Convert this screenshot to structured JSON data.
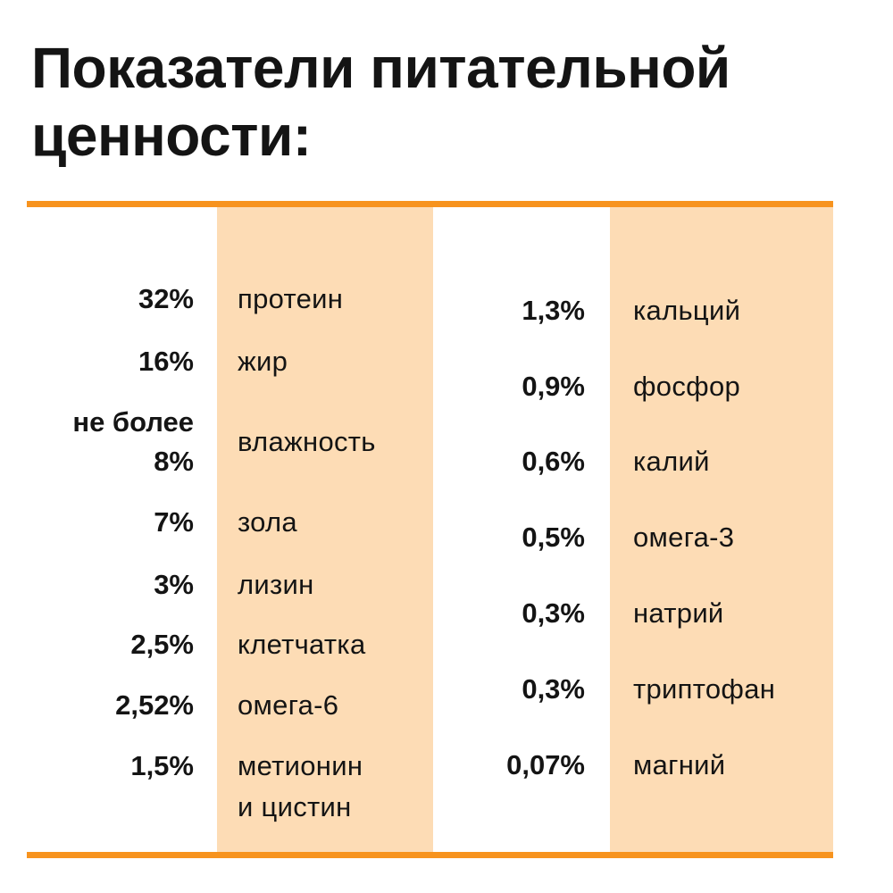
{
  "title": [
    "Показатели питательной",
    "ценности:"
  ],
  "left": [
    {
      "value": "32%",
      "name": "протеин"
    },
    {
      "value": "16%",
      "name": "жир"
    },
    {
      "value": [
        "не более",
        "8%"
      ],
      "name": "влажность"
    },
    {
      "value": "7%",
      "name": "зола"
    },
    {
      "value": "3%",
      "name": "лизин"
    },
    {
      "value": "2,5%",
      "name": "клетчатка"
    },
    {
      "value": "2,52%",
      "name": "омега-6"
    },
    {
      "value": "1,5%",
      "name": [
        "метионин",
        "и цистин"
      ]
    }
  ],
  "right": [
    {
      "value": "1,3%",
      "name": "кальций"
    },
    {
      "value": "0,9%",
      "name": "фосфор"
    },
    {
      "value": "0,6%",
      "name": "калий"
    },
    {
      "value": "0,5%",
      "name": "омега-3"
    },
    {
      "value": "0,3%",
      "name": "натрий"
    },
    {
      "value": "0,3%",
      "name": "триптофан"
    },
    {
      "value": "0,07%",
      "name": "магний"
    }
  ]
}
